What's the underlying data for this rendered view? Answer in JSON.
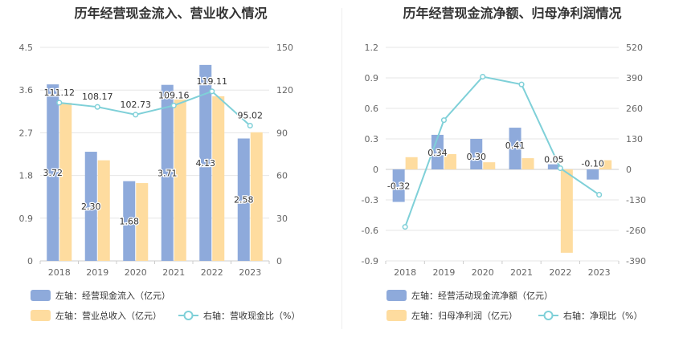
{
  "chart_data": [
    {
      "type": "bar",
      "title": "历年经营现金流入、营业收入情况",
      "categories": [
        "2018",
        "2019",
        "2020",
        "2021",
        "2022",
        "2023"
      ],
      "left_axis": {
        "min": 0,
        "max": 4.5,
        "ticks": [
          "0",
          "0.9",
          "1.8",
          "2.7",
          "3.6",
          "4.5"
        ]
      },
      "right_axis": {
        "min": 0,
        "max": 150,
        "ticks": [
          "0",
          "30",
          "60",
          "90",
          "120",
          "150"
        ]
      },
      "series": [
        {
          "name": "左轴：经营现金流入（亿元）",
          "axis": "left",
          "kind": "bar",
          "color": "#8eaadb",
          "values": [
            3.72,
            2.3,
            1.68,
            3.71,
            4.13,
            2.58
          ],
          "labels": [
            "3.72",
            "2.30",
            "1.68",
            "3.71",
            "4.13",
            "2.58"
          ]
        },
        {
          "name": "左轴：营业总收入（亿元）",
          "axis": "left",
          "kind": "bar",
          "color": "#fedc9f",
          "values": [
            3.33,
            2.12,
            1.64,
            3.4,
            3.47,
            2.71
          ]
        },
        {
          "name": "右轴：营收现金比（%）",
          "axis": "right",
          "kind": "line",
          "color": "#7fd0d8",
          "values": [
            111.12,
            108.17,
            102.73,
            109.16,
            119.11,
            95.02
          ],
          "labels": [
            "111.12",
            "108.17",
            "102.73",
            "109.16",
            "119.11",
            "95.02"
          ]
        }
      ]
    },
    {
      "type": "bar",
      "title": "历年经营现金流净额、归母净利润情况",
      "categories": [
        "2018",
        "2019",
        "2020",
        "2021",
        "2022",
        "2023"
      ],
      "left_axis": {
        "min": -0.9,
        "max": 1.2,
        "ticks": [
          "-0.9",
          "-0.6",
          "-0.3",
          "0",
          "0.3",
          "0.6",
          "0.9",
          "1.2"
        ]
      },
      "right_axis": {
        "min": -390,
        "max": 520,
        "ticks": [
          "-390",
          "-260",
          "-130",
          "0",
          "130",
          "260",
          "390",
          "520"
        ]
      },
      "series": [
        {
          "name": "左轴：经营活动现金流净额（亿元）",
          "axis": "left",
          "kind": "bar",
          "color": "#8eaadb",
          "values": [
            -0.32,
            0.34,
            0.3,
            0.41,
            0.05,
            -0.1
          ],
          "labels": [
            "-0.32",
            "0.34",
            "0.30",
            "0.41",
            "0.05",
            "-0.10"
          ]
        },
        {
          "name": "左轴：归母净利润（亿元）",
          "axis": "left",
          "kind": "bar",
          "color": "#fedc9f",
          "values": [
            0.12,
            0.15,
            0.07,
            0.11,
            -0.82,
            0.09
          ]
        },
        {
          "name": "右轴：净现比（%）",
          "axis": "right",
          "kind": "line",
          "color": "#7fd0d8",
          "values": [
            -245,
            210,
            395,
            362,
            5,
            -108
          ]
        }
      ]
    }
  ]
}
